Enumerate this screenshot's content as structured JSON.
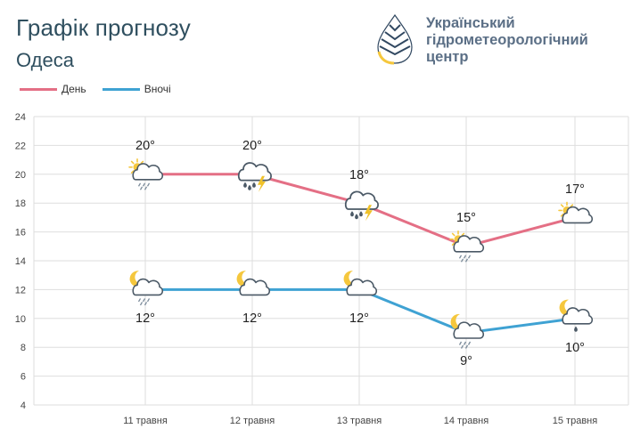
{
  "header": {
    "title": "Графік прогнозу",
    "city": "Одеса"
  },
  "brand": {
    "line1": "Український",
    "line2": "гідрометеорологічний",
    "line3": "центр"
  },
  "colors": {
    "day": "#e46f85",
    "night": "#3fa2d3",
    "grid": "#dedede",
    "icon_outline": "#4b5966",
    "sun": "#f5c73d",
    "rain": "#7a8a9a",
    "lightning": "#f0c22a"
  },
  "chart_data": {
    "type": "line",
    "categories": [
      "11 травня",
      "12 травня",
      "13 травня",
      "14 травня",
      "15 травня"
    ],
    "series": [
      {
        "name": "День",
        "values": [
          20,
          20,
          18,
          15,
          17
        ],
        "labels": [
          "20°",
          "20°",
          "18°",
          "15°",
          "17°"
        ],
        "icons": [
          "sun-cloud-rain-icon",
          "cloud-rain-lightning-icon",
          "cloud-rain-lightning-icon",
          "sun-cloud-rain-icon",
          "sun-cloud-icon"
        ]
      },
      {
        "name": "Вночі",
        "values": [
          12,
          12,
          12,
          9,
          10
        ],
        "labels": [
          "12°",
          "12°",
          "12°",
          "9°",
          "10°"
        ],
        "icons": [
          "moon-cloud-rain-icon",
          "moon-cloud-icon",
          "moon-cloud-icon",
          "moon-cloud-rain-icon",
          "moon-cloud-drop-icon"
        ]
      }
    ],
    "ylim": [
      4,
      24
    ],
    "yticks": [
      4,
      6,
      8,
      10,
      12,
      14,
      16,
      18,
      20,
      22,
      24
    ],
    "grid": true,
    "legend": "top-left"
  }
}
